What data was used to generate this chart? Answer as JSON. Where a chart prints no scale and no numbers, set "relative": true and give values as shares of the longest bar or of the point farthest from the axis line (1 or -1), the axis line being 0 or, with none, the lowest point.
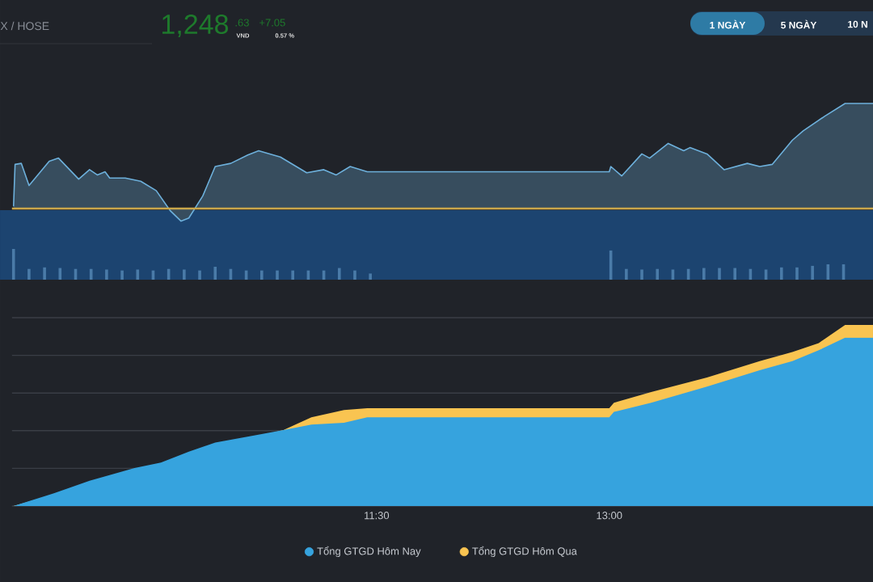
{
  "chart_data": [
    {
      "type": "area",
      "relative": true,
      "xlim": [
        9.15,
        14.7
      ],
      "tick_labels": false,
      "x": [
        9.16,
        9.17,
        9.21,
        9.26,
        9.39,
        9.45,
        9.58,
        9.65,
        9.7,
        9.75,
        9.78,
        9.88,
        9.98,
        10.08,
        10.17,
        10.24,
        10.29,
        10.38,
        10.46,
        10.56,
        10.67,
        10.74,
        10.88,
        11.05,
        11.16,
        11.24,
        11.33,
        11.44,
        13.0,
        13.01,
        13.08,
        13.21,
        13.26,
        13.38,
        13.48,
        13.52,
        13.63,
        13.74,
        13.89,
        13.97,
        14.05,
        14.18,
        14.25,
        14.39,
        14.52,
        14.7
      ],
      "series": [
        {
          "color": "#6db0db",
          "values": [
            0.02,
            0.42,
            0.43,
            0.22,
            0.45,
            0.48,
            0.28,
            0.37,
            0.32,
            0.35,
            0.29,
            0.29,
            0.26,
            0.17,
            -0.02,
            -0.12,
            -0.09,
            0.12,
            0.4,
            0.43,
            0.51,
            0.55,
            0.49,
            0.34,
            0.37,
            0.32,
            0.4,
            0.35,
            0.35,
            0.4,
            0.31,
            0.52,
            0.48,
            0.62,
            0.55,
            0.58,
            0.52,
            0.37,
            0.43,
            0.4,
            0.42,
            0.65,
            0.74,
            0.88,
            1,
            1
          ]
        }
      ],
      "ref_lines": [
        {
          "axis": "y",
          "value": 0,
          "color": "#c9a64a"
        }
      ],
      "annotations": [
        "X / HOSE",
        "1,248",
        ".63",
        "+7.05",
        "VND",
        "0.57 %",
        "1 NGÀY",
        "5 NGÀY",
        "10 N"
      ]
    },
    {
      "type": "bar",
      "relative": true,
      "xlim": [
        9.15,
        14.7
      ],
      "tick_labels": false,
      "x": [
        9.16,
        9.26,
        9.36,
        9.46,
        9.56,
        9.66,
        9.76,
        9.86,
        9.96,
        10.06,
        10.16,
        10.26,
        10.36,
        10.46,
        10.56,
        10.66,
        10.76,
        10.86,
        10.96,
        11.06,
        11.16,
        11.26,
        11.36,
        11.46,
        13.01,
        13.11,
        13.21,
        13.31,
        13.41,
        13.51,
        13.61,
        13.71,
        13.81,
        13.91,
        14.01,
        14.11,
        14.21,
        14.31,
        14.41,
        14.51
      ],
      "series": [
        {
          "color": "#4a7ba8",
          "values": [
            1,
            0.35,
            0.4,
            0.38,
            0.35,
            0.35,
            0.33,
            0.3,
            0.33,
            0.3,
            0.35,
            0.33,
            0.3,
            0.42,
            0.35,
            0.3,
            0.3,
            0.3,
            0.3,
            0.3,
            0.3,
            0.38,
            0.3,
            0.2,
            0.95,
            0.35,
            0.33,
            0.35,
            0.33,
            0.35,
            0.38,
            0.38,
            0.38,
            0.35,
            0.33,
            0.4,
            0.4,
            0.45,
            0.5,
            0.5
          ]
        }
      ]
    },
    {
      "type": "area",
      "relative": true,
      "xlim": [
        9.15,
        14.7
      ],
      "tick_labels": "x",
      "grid": "y",
      "legend": "bottom",
      "xticks": [
        {
          "value": 11.5,
          "label": "11:30"
        },
        {
          "value": 13,
          "label": "13:00"
        }
      ],
      "x": [
        9.16,
        9.42,
        9.65,
        9.94,
        10.11,
        10.29,
        10.46,
        10.71,
        10.9,
        11.08,
        11.29,
        11.44,
        13.0,
        13.03,
        13.27,
        13.63,
        13.97,
        14.18,
        14.35,
        14.52,
        14.7
      ],
      "series": [
        {
          "name": "Tổng GTGD Hôm Nay",
          "color": "#36a3de",
          "values": [
            0,
            0.07,
            0.14,
            0.21,
            0.24,
            0.3,
            0.35,
            0.39,
            0.42,
            0.45,
            0.46,
            0.49,
            0.49,
            0.52,
            0.57,
            0.66,
            0.75,
            0.8,
            0.86,
            0.93,
            0.93
          ]
        },
        {
          "name": "Tổng GTGD Hôm Qua",
          "color": "#f9c451",
          "values": [
            0,
            null,
            null,
            null,
            null,
            null,
            null,
            0.38,
            0.42,
            0.49,
            0.53,
            0.54,
            0.54,
            0.57,
            0.63,
            0.71,
            0.8,
            0.85,
            0.9,
            1,
            1
          ]
        }
      ]
    }
  ]
}
